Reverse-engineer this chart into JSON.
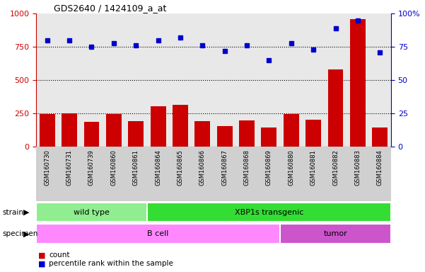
{
  "title": "GDS2640 / 1424109_a_at",
  "samples": [
    "GSM160730",
    "GSM160731",
    "GSM160739",
    "GSM160860",
    "GSM160861",
    "GSM160864",
    "GSM160865",
    "GSM160866",
    "GSM160867",
    "GSM160868",
    "GSM160869",
    "GSM160880",
    "GSM160881",
    "GSM160882",
    "GSM160883",
    "GSM160884"
  ],
  "counts": [
    248,
    252,
    190,
    248,
    195,
    305,
    315,
    195,
    158,
    200,
    148,
    248,
    205,
    580,
    960,
    148
  ],
  "percentiles": [
    80,
    80,
    75,
    78,
    76,
    80,
    82,
    76,
    72,
    76,
    65,
    78,
    73,
    89,
    95,
    71
  ],
  "strain_groups": [
    {
      "label": "wild type",
      "start": 0,
      "end": 5,
      "color": "#90ee90"
    },
    {
      "label": "XBP1s transgenic",
      "start": 5,
      "end": 16,
      "color": "#33dd33"
    }
  ],
  "specimen_groups": [
    {
      "label": "B cell",
      "start": 0,
      "end": 11,
      "color": "#ff88ff"
    },
    {
      "label": "tumor",
      "start": 11,
      "end": 16,
      "color": "#cc55cc"
    }
  ],
  "bar_color": "#cc0000",
  "dot_color": "#0000cc",
  "left_ylim": [
    0,
    1000
  ],
  "right_ylim": [
    0,
    100
  ],
  "left_yticks": [
    0,
    250,
    500,
    750,
    1000
  ],
  "right_yticks": [
    0,
    25,
    50,
    75,
    100
  ],
  "dotted_lines": [
    250,
    500,
    750
  ],
  "plot_bg": "#e8e8e8",
  "xtick_bg": "#d0d0d0",
  "legend_count_label": "count",
  "legend_pct_label": "percentile rank within the sample"
}
